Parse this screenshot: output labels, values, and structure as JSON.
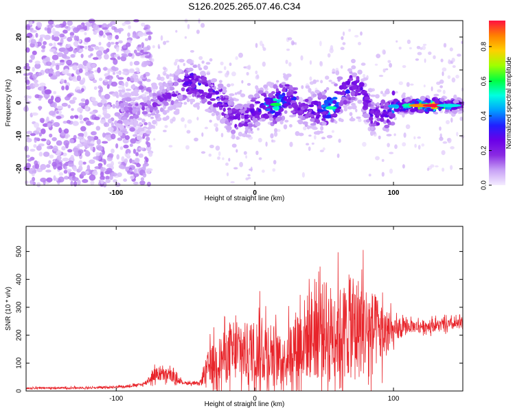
{
  "figure_title": "S126.2025.265.07.46.C34",
  "chart_data": [
    {
      "type": "heatmap",
      "title": "S126.2025.265.07.46.C34",
      "xlabel": "Height of straight line (km)",
      "ylabel": "Frequency (Hz)",
      "xlim": [
        -165,
        150
      ],
      "ylim": [
        -25,
        25
      ],
      "x_ticks": [
        -100,
        0,
        100
      ],
      "x_tick_labels": [
        "-100",
        "0",
        "100"
      ],
      "y_ticks": [
        -20,
        -10,
        0,
        10,
        20
      ],
      "y_tick_labels": [
        "-20",
        "-10",
        "0",
        "10",
        "20"
      ],
      "colorbar": {
        "label": "Normalized spectral amplitude",
        "range": [
          0.0,
          0.95
        ],
        "ticks": [
          0.0,
          0.2,
          0.4,
          0.6,
          0.8
        ],
        "tick_labels": [
          "0.0",
          "0.2",
          "0.4",
          "0.6",
          "0.8"
        ],
        "colormap": [
          "#f4ecff",
          "#c8a2f6",
          "#8a2be2",
          "#6a00e8",
          "#2020ff",
          "#00a0ff",
          "#00ffe0",
          "#00ff40",
          "#a0ff00",
          "#ffd000",
          "#ff8000",
          "#ff1040"
        ]
      },
      "ridge_points": [
        {
          "x": -80,
          "y": -2,
          "amp": 0.15
        },
        {
          "x": -60,
          "y": 3,
          "amp": 0.2
        },
        {
          "x": -45,
          "y": 7,
          "amp": 0.35
        },
        {
          "x": -35,
          "y": 4,
          "amp": 0.3
        },
        {
          "x": -25,
          "y": 1,
          "amp": 0.3
        },
        {
          "x": -15,
          "y": -5,
          "amp": 0.25
        },
        {
          "x": -5,
          "y": -4,
          "amp": 0.25
        },
        {
          "x": 5,
          "y": -1,
          "amp": 0.3
        },
        {
          "x": 15,
          "y": -0.5,
          "amp": 0.6
        },
        {
          "x": 25,
          "y": 2,
          "amp": 0.35
        },
        {
          "x": 35,
          "y": -2,
          "amp": 0.3
        },
        {
          "x": 45,
          "y": -2,
          "amp": 0.3
        },
        {
          "x": 55,
          "y": -1.5,
          "amp": 0.55
        },
        {
          "x": 65,
          "y": 4,
          "amp": 0.35
        },
        {
          "x": 75,
          "y": 5,
          "amp": 0.3
        },
        {
          "x": 85,
          "y": -4,
          "amp": 0.3
        },
        {
          "x": 95,
          "y": -3,
          "amp": 0.3
        },
        {
          "x": 100,
          "y": -1,
          "amp": 0.45
        },
        {
          "x": 110,
          "y": -0.8,
          "amp": 0.55
        },
        {
          "x": 120,
          "y": -0.8,
          "amp": 0.85
        },
        {
          "x": 130,
          "y": -0.8,
          "amp": 0.95
        },
        {
          "x": 140,
          "y": -0.8,
          "amp": 0.5
        },
        {
          "x": 148,
          "y": -0.8,
          "amp": 0.3
        }
      ]
    },
    {
      "type": "line",
      "xlabel": "Height of straight line (km)",
      "ylabel": "SNR (10 * v/v)",
      "xlim": [
        -165,
        150
      ],
      "ylim": [
        0,
        590
      ],
      "x_ticks": [
        -100,
        0,
        100
      ],
      "x_tick_labels": [
        "-100",
        "0",
        "100"
      ],
      "y_ticks": [
        0,
        100,
        200,
        300,
        400,
        500
      ],
      "y_tick_labels": [
        "0",
        "100",
        "200",
        "300",
        "400",
        "500"
      ],
      "color": "#e8242a",
      "envelope": [
        {
          "x": -165,
          "base": 10,
          "spread": 6
        },
        {
          "x": -110,
          "base": 12,
          "spread": 6
        },
        {
          "x": -90,
          "base": 18,
          "spread": 8
        },
        {
          "x": -80,
          "base": 25,
          "spread": 10
        },
        {
          "x": -72,
          "base": 60,
          "spread": 45
        },
        {
          "x": -60,
          "base": 55,
          "spread": 40
        },
        {
          "x": -52,
          "base": 30,
          "spread": 10
        },
        {
          "x": -40,
          "base": 25,
          "spread": 10
        },
        {
          "x": -33,
          "base": 90,
          "spread": 120
        },
        {
          "x": -20,
          "base": 130,
          "spread": 170
        },
        {
          "x": -5,
          "base": 140,
          "spread": 200
        },
        {
          "x": 10,
          "base": 150,
          "spread": 230
        },
        {
          "x": 20,
          "base": 110,
          "spread": 120
        },
        {
          "x": 28,
          "base": 160,
          "spread": 220
        },
        {
          "x": 45,
          "base": 220,
          "spread": 330
        },
        {
          "x": 60,
          "base": 210,
          "spread": 300
        },
        {
          "x": 75,
          "base": 230,
          "spread": 340
        },
        {
          "x": 90,
          "base": 210,
          "spread": 220
        },
        {
          "x": 100,
          "base": 210,
          "spread": 80
        },
        {
          "x": 110,
          "base": 230,
          "spread": 40
        },
        {
          "x": 150,
          "base": 240,
          "spread": 35
        }
      ]
    }
  ]
}
